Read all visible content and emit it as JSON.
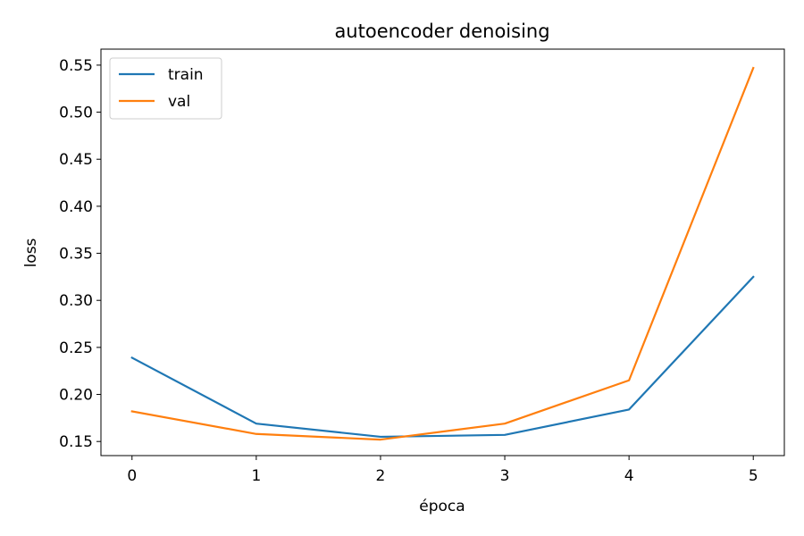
{
  "chart_data": {
    "type": "line",
    "title": "autoencoder denoising",
    "xlabel": "época",
    "ylabel": "loss",
    "x": [
      0,
      1,
      2,
      3,
      4,
      5
    ],
    "x_ticks": [
      "0",
      "1",
      "2",
      "3",
      "4",
      "5"
    ],
    "y_ticks": [
      "0.15",
      "0.20",
      "0.25",
      "0.30",
      "0.35",
      "0.40",
      "0.45",
      "0.50",
      "0.55"
    ],
    "xlim": [
      -0.25,
      5.25
    ],
    "ylim": [
      0.135,
      0.567
    ],
    "grid": false,
    "legend_position": "top-left",
    "series": [
      {
        "name": "train",
        "color": "#1f77b4",
        "values": [
          0.239,
          0.169,
          0.155,
          0.157,
          0.184,
          0.325
        ]
      },
      {
        "name": "val",
        "color": "#ff7f0e",
        "values": [
          0.182,
          0.158,
          0.152,
          0.169,
          0.215,
          0.547
        ]
      }
    ]
  }
}
